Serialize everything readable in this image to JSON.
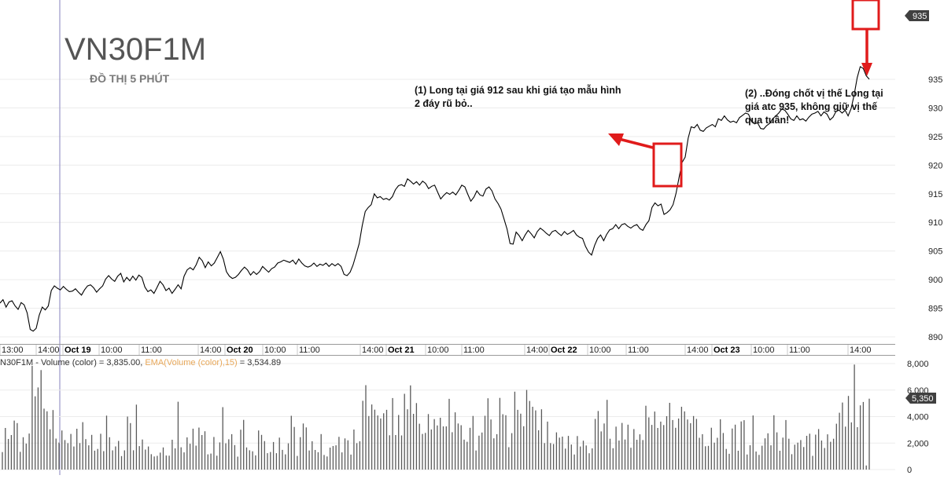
{
  "chart_data": [
    {
      "type": "line",
      "title": "VN30F1M",
      "subtitle": "ĐỒ THỊ 5 PHÚT",
      "ylim": [
        888,
        936
      ],
      "y_ticks": [
        890,
        895,
        900,
        905,
        910,
        915,
        920,
        925,
        930,
        935
      ],
      "last_value": "935",
      "x_ticks": [
        {
          "label": "13:00",
          "bold": false
        },
        {
          "label": "14:00",
          "bold": false
        },
        {
          "label": "Oct 19",
          "bold": true
        },
        {
          "label": "10:00",
          "bold": false
        },
        {
          "label": "11:00",
          "bold": false
        },
        {
          "label": "14:00",
          "bold": false
        },
        {
          "label": "Oct 20",
          "bold": true
        },
        {
          "label": "10:00",
          "bold": false
        },
        {
          "label": "11:00",
          "bold": false
        },
        {
          "label": "14:00",
          "bold": false
        },
        {
          "label": "Oct 21",
          "bold": true
        },
        {
          "label": "10:00",
          "bold": false
        },
        {
          "label": "11:00",
          "bold": false
        },
        {
          "label": "14:00",
          "bold": false
        },
        {
          "label": "Oct 22",
          "bold": true
        },
        {
          "label": "10:00",
          "bold": false
        },
        {
          "label": "11:00",
          "bold": false
        },
        {
          "label": "14:00",
          "bold": false
        },
        {
          "label": "Oct 23",
          "bold": true
        },
        {
          "label": "10:00",
          "bold": false
        },
        {
          "label": "11:00",
          "bold": false
        },
        {
          "label": "14:00",
          "bold": false
        }
      ],
      "series": [
        {
          "values": [
            895.9,
            896.5,
            895.2,
            896.1,
            896.3,
            895.4,
            894.8,
            896.0,
            895.6,
            894.2,
            891.3,
            891.0,
            891.5,
            893.8,
            895.2,
            894.7,
            895.4,
            898.1,
            898.9,
            898.5,
            898.2,
            898.8,
            898.3,
            897.9,
            898.0,
            898.4,
            897.8,
            897.3,
            898.2,
            898.9,
            899.1,
            898.6,
            897.8,
            898.4,
            898.9,
            900.1,
            900.7,
            900.1,
            899.7,
            900.6,
            901.1,
            899.6,
            900.4,
            899.8,
            900.6,
            899.9,
            900.8,
            900.4,
            898.7,
            897.9,
            898.2,
            897.6,
            898.6,
            899.7,
            899.1,
            898.1,
            898.5,
            897.6,
            898.3,
            899.1,
            898.4,
            900.6,
            901.7,
            902.1,
            901.7,
            902.6,
            903.9,
            903.3,
            902.1,
            903.1,
            902.4,
            902.9,
            903.9,
            904.9,
            903.6,
            901.4,
            900.6,
            900.2,
            900.4,
            900.9,
            901.6,
            902.2,
            901.7,
            900.8,
            901.4,
            900.9,
            901.4,
            902.3,
            901.8,
            901.3,
            901.9,
            902.2,
            902.9,
            903.1,
            903.4,
            903.2,
            903.0,
            903.4,
            902.7,
            903.6,
            902.9,
            902.4,
            902.2,
            902.4,
            902.9,
            902.3,
            902.7,
            902.5,
            902.9,
            902.3,
            902.8,
            902.4,
            902.8,
            902.3,
            900.9,
            900.7,
            901.3,
            902.6,
            904.4,
            906.3,
            909.4,
            911.9,
            912.6,
            913.1,
            915.0,
            914.3,
            914.5,
            914.0,
            914.2,
            913.9,
            914.5,
            915.7,
            916.4,
            916.6,
            916.3,
            917.6,
            917.2,
            916.7,
            917.1,
            916.5,
            917.2,
            916.8,
            915.9,
            916.3,
            916.5,
            915.3,
            914.1,
            914.7,
            915.2,
            914.9,
            915.3,
            914.8,
            915.6,
            916.5,
            916.2,
            914.9,
            913.7,
            914.4,
            915.5,
            914.8,
            914.6,
            915.8,
            916.2,
            915.5,
            914.1,
            913.3,
            912.3,
            910.6,
            908.8,
            906.3,
            906.2,
            908.3,
            907.7,
            906.8,
            907.8,
            908.6,
            908.0,
            907.3,
            908.4,
            909.0,
            908.6,
            908.1,
            907.7,
            908.4,
            908.6,
            908.1,
            907.7,
            908.4,
            907.9,
            908.2,
            908.6,
            907.8,
            907.4,
            907.2,
            905.8,
            904.8,
            904.3,
            906.0,
            907.2,
            907.8,
            906.8,
            907.9,
            908.7,
            908.9,
            909.6,
            908.9,
            909.6,
            909.8,
            909.3,
            909.0,
            909.4,
            909.6,
            908.9,
            908.6,
            909.6,
            910.3,
            912.6,
            913.4,
            912.9,
            913.2,
            911.4,
            911.7,
            912.2,
            913.1,
            915.1,
            917.9,
            920.5,
            921.4,
            924.7,
            926.7,
            926.5,
            927.1,
            926.1,
            925.9,
            926.5,
            926.8,
            927.1,
            926.7,
            928.1,
            927.8,
            928.6,
            927.9,
            927.5,
            927.7,
            927.4,
            928.3,
            928.7,
            929.1,
            928.9,
            927.6,
            927.2,
            927.4,
            926.4,
            926.3,
            926.9,
            927.3,
            928.1,
            928.6,
            929.1,
            929.8,
            929.6,
            928.9,
            928.1,
            927.8,
            928.6,
            927.9,
            928.1,
            927.7,
            928.4,
            928.9,
            929.1,
            929.4,
            928.6,
            929.3,
            928.9,
            927.9,
            928.4,
            929.4,
            929.6,
            929.1,
            929.6,
            928.6,
            929.9,
            932.3,
            935.3,
            937.2,
            936.9,
            935.6,
            935.0
          ]
        }
      ]
    },
    {
      "type": "bar",
      "legend_parts": [
        "N30F1M - Volume (color) = 3,835.00, ",
        "EMA(Volume (color),15)",
        " = 3,534.89"
      ],
      "ylim": [
        0,
        8000
      ],
      "y_ticks": [
        "0",
        "2,000",
        "4,000",
        "6,000",
        "8,000"
      ],
      "last_value": "5,350",
      "ema_color": "#e8a85a",
      "values": [
        1320,
        3140,
        2310,
        2610,
        3700,
        3510,
        1340,
        2440,
        1960,
        2720,
        7830,
        5530,
        6200,
        7510,
        4600,
        4400,
        3040,
        4490,
        2340,
        2040,
        2950,
        2230,
        1990,
        2690,
        1740,
        3080,
        2000,
        3580,
        2300,
        1830,
        2620,
        1430,
        1560,
        2700,
        1390,
        4070,
        2440,
        1450,
        1750,
        2160,
        1020,
        1450,
        4000,
        3510,
        1460,
        4900,
        1770,
        2270,
        1510,
        1740,
        1160,
        990,
        1040,
        1280,
        1670,
        1060,
        1050,
        2250,
        1600,
        5120,
        1680,
        1300,
        2430,
        1950,
        3090,
        1810,
        3170,
        2610,
        2890,
        1150,
        1210,
        2460,
        1050,
        2050,
        4710,
        1980,
        2290,
        2670,
        1850,
        980,
        3010,
        3750,
        1670,
        1460,
        1380,
        1070,
        2950,
        2620,
        2150,
        1240,
        1330,
        2080,
        1240,
        2410,
        1490,
        1150,
        1980,
        4060,
        3220,
        1030,
        2450,
        3480,
        3180,
        1440,
        2140,
        1480,
        1310,
        2680,
        1100,
        990,
        1660,
        1780,
        1830,
        2470,
        1300,
        2350,
        2210,
        1130,
        3020,
        1990,
        2140,
        5190,
        6370,
        4040,
        4910,
        4520,
        4080,
        3860,
        4250,
        4510,
        2590,
        5400,
        2610,
        4120,
        2580,
        5720,
        4550,
        6350,
        4210,
        5020,
        3460,
        2690,
        2770,
        4190,
        3030,
        3810,
        3330,
        3910,
        3260,
        3260,
        5340,
        2820,
        4320,
        3480,
        3350,
        2260,
        2100,
        3150,
        4050,
        1440,
        2560,
        2800,
        4060,
        5380,
        3780,
        2360,
        2670,
        5410,
        4180,
        4100,
        1690,
        2750,
        5880,
        4510,
        4220,
        3270,
        6010,
        5180,
        4740,
        4470,
        2970,
        4550,
        2000,
        3620,
        2000,
        1930,
        2810,
        2410,
        2490,
        1580,
        2540,
        1890,
        1140,
        2530,
        1740,
        2180,
        1820,
        1230,
        1600,
        3820,
        4420,
        2880,
        3480,
        5260,
        2330,
        1610,
        3240,
        2190,
        3520,
        2270,
        3390,
        1650,
        3060,
        2250,
        2660,
        2230,
        4820,
        3940,
        3370,
        4380,
        3140,
        3620,
        3360,
        4030,
        5040,
        3740,
        3150,
        3850,
        4740,
        4390,
        3780,
        3500,
        4040,
        3820,
        2400,
        2670,
        1760,
        1790,
        3160,
        2030,
        2400,
        3790,
        2760,
        1560,
        1190,
        3100,
        3390,
        1420,
        3630,
        3730,
        1140,
        1840,
        4080,
        1360,
        1110,
        1800,
        2360,
        2740,
        1830,
        4100,
        2810,
        1420,
        2410,
        3740,
        2330,
        1160,
        1880,
        2030,
        2230,
        1700,
        2550,
        2710,
        1040,
        2640,
        3060,
        2190,
        1630,
        2660,
        2100,
        2330,
        3460,
        4290,
        5060,
        3240,
        5560,
        3560,
        7930,
        3200,
        4850,
        5100,
        310,
        5350
      ]
    }
  ],
  "annotations": {
    "note1_lines": [
      "(1) Long tại giá 912 sau khi giá tạo mẫu hình",
      "2 đáy rũ bỏ.."
    ],
    "note2_lines": [
      "(2) ..Đóng chốt vị thế Long tại",
      "giá atc 935, không giữ vị thế",
      "qua tuần!"
    ],
    "marker_color": "#e01b1b"
  }
}
